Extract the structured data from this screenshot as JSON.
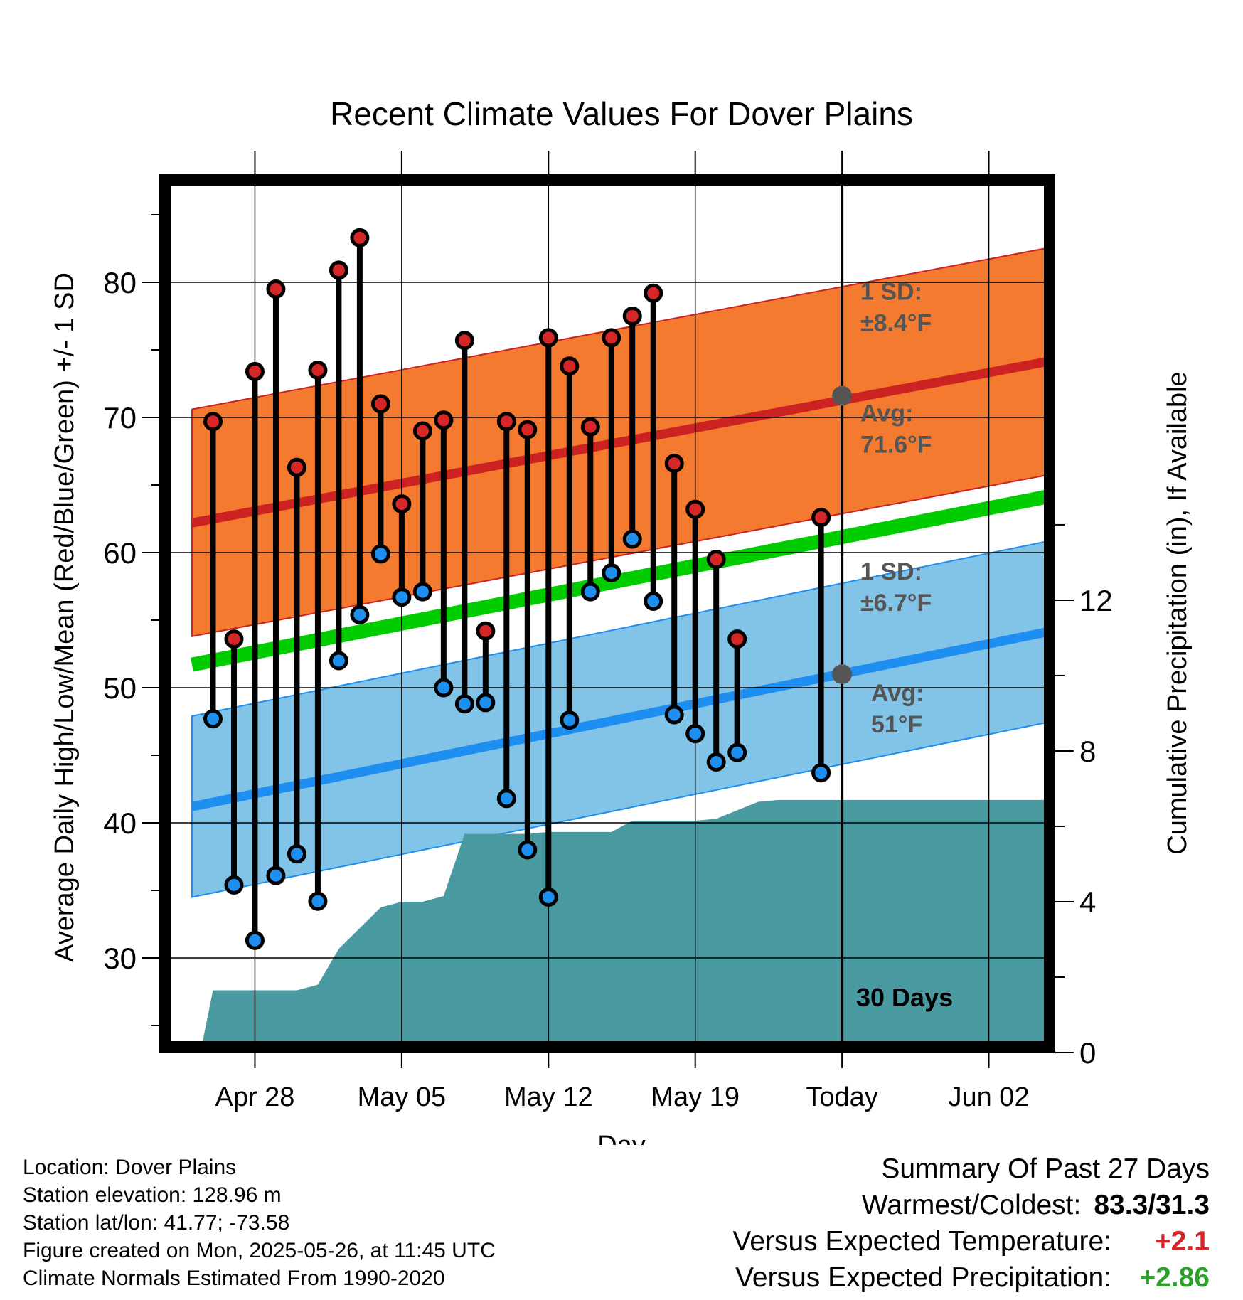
{
  "chart_data": {
    "type": "line",
    "title": "Recent Climate Values For Dover Plains",
    "xlabel": "Day",
    "ylabel": "Average Daily High/Low/Mean (Red/Blue/Green) +/- 1 SD",
    "ylabel_right": "Cumulative Precipitation (in), If Available",
    "x_ticks": [
      {
        "label": "Apr 28",
        "day": 28
      },
      {
        "label": "May 05",
        "day": 35
      },
      {
        "label": "May 12",
        "day": 42
      },
      {
        "label": "May 19",
        "day": 49
      },
      {
        "label": "Today",
        "day": 56
      },
      {
        "label": "Jun 02",
        "day": 63
      }
    ],
    "xlim": [
      25,
      66
    ],
    "ylim": [
      23,
      88
    ],
    "y_ticks": [
      30,
      40,
      50,
      60,
      70,
      80
    ],
    "y2lim": [
      0,
      23.3
    ],
    "y2_ticks": [
      0,
      4,
      8,
      12
    ],
    "normals": {
      "high": {
        "avg_start": 62.2,
        "avg_end": 74.2,
        "sd": 8.4,
        "color": "#cc2222",
        "band_color": "#f47a30"
      },
      "low": {
        "avg_start": 41.2,
        "avg_end": 54.2,
        "sd": 6.7,
        "color": "#1e8ef0",
        "band_color": "#82c3e8"
      },
      "mean": {
        "start": 51.7,
        "end": 64.2,
        "color": "#00cc00"
      }
    },
    "today": {
      "label": "30 Days",
      "high_label": "1 SD:\n±8.4°F",
      "high_avg_label": "Avg:\n71.6°F",
      "high_avg": 71.6,
      "low_label": "1 SD:\n±6.7°F",
      "low_avg_label": "Avg:\n51°F",
      "low_avg": 51
    },
    "days": [
      {
        "day": 26,
        "high": 69.7,
        "low": 47.7
      },
      {
        "day": 27,
        "high": 53.6,
        "low": 35.4
      },
      {
        "day": 28,
        "high": 73.4,
        "low": 31.3
      },
      {
        "day": 29,
        "high": 79.5,
        "low": 36.1
      },
      {
        "day": 30,
        "high": 66.3,
        "low": 37.7
      },
      {
        "day": 31,
        "high": 73.5,
        "low": 34.2
      },
      {
        "day": 32,
        "high": 80.9,
        "low": 52.0
      },
      {
        "day": 33,
        "high": 83.3,
        "low": 55.4
      },
      {
        "day": 34,
        "high": 71.0,
        "low": 59.9
      },
      {
        "day": 35,
        "high": 63.6,
        "low": 56.7
      },
      {
        "day": 36,
        "high": 69.0,
        "low": 57.1
      },
      {
        "day": 37,
        "high": 69.8,
        "low": 50.0
      },
      {
        "day": 38,
        "high": 75.7,
        "low": 48.8
      },
      {
        "day": 39,
        "high": 54.2,
        "low": 48.9
      },
      {
        "day": 40,
        "high": 69.7,
        "low": 41.8
      },
      {
        "day": 41,
        "high": 69.1,
        "low": 38.0
      },
      {
        "day": 42,
        "high": 75.9,
        "low": 34.5
      },
      {
        "day": 43,
        "high": 73.8,
        "low": 47.6
      },
      {
        "day": 44,
        "high": 69.3,
        "low": 57.1
      },
      {
        "day": 45,
        "high": 75.9,
        "low": 58.5
      },
      {
        "day": 46,
        "high": 77.5,
        "low": 61.0
      },
      {
        "day": 47,
        "high": 79.2,
        "low": 56.4
      },
      {
        "day": 48,
        "high": 66.6,
        "low": 48.0
      },
      {
        "day": 49,
        "high": 63.2,
        "low": 46.6
      },
      {
        "day": 50,
        "high": 59.5,
        "low": 44.5
      },
      {
        "day": 51,
        "high": 53.6,
        "low": 45.2
      },
      {
        "day": 55,
        "high": 62.6,
        "low": 43.7
      }
    ],
    "precip_cumulative": [
      {
        "day": 25.4,
        "value": 0.0
      },
      {
        "day": 26,
        "value": 1.65
      },
      {
        "day": 30,
        "value": 1.65
      },
      {
        "day": 31,
        "value": 1.8
      },
      {
        "day": 32,
        "value": 2.75
      },
      {
        "day": 34,
        "value": 3.85
      },
      {
        "day": 35,
        "value": 4.0
      },
      {
        "day": 36,
        "value": 4.0
      },
      {
        "day": 37,
        "value": 4.15
      },
      {
        "day": 38,
        "value": 5.8
      },
      {
        "day": 40,
        "value": 5.8
      },
      {
        "day": 41,
        "value": 5.8
      },
      {
        "day": 42,
        "value": 5.85
      },
      {
        "day": 45,
        "value": 5.85
      },
      {
        "day": 46,
        "value": 6.15
      },
      {
        "day": 49,
        "value": 6.15
      },
      {
        "day": 50,
        "value": 6.2
      },
      {
        "day": 52,
        "value": 6.65
      },
      {
        "day": 53,
        "value": 6.7
      },
      {
        "day": 66,
        "value": 6.7
      }
    ]
  },
  "info": {
    "location": "Location: Dover Plains",
    "elevation": "Station elevation: 128.96 m",
    "latlon": "Station lat/lon: 41.77; -73.58",
    "created": "Figure created on Mon, 2025-05-26, at 11:45 UTC",
    "normals": "Climate Normals Estimated From 1990-2020"
  },
  "summary": {
    "title": "Summary Of Past 27 Days",
    "warmest_label": "Warmest/Coldest:",
    "warmest_value": "83.3/31.3",
    "temp_label": "Versus Expected Temperature:",
    "temp_value": "+2.1",
    "temp_color": "#d62728",
    "precip_label": "Versus Expected Precipitation:",
    "precip_value": "+2.86",
    "precip_color": "#2ca02c"
  }
}
